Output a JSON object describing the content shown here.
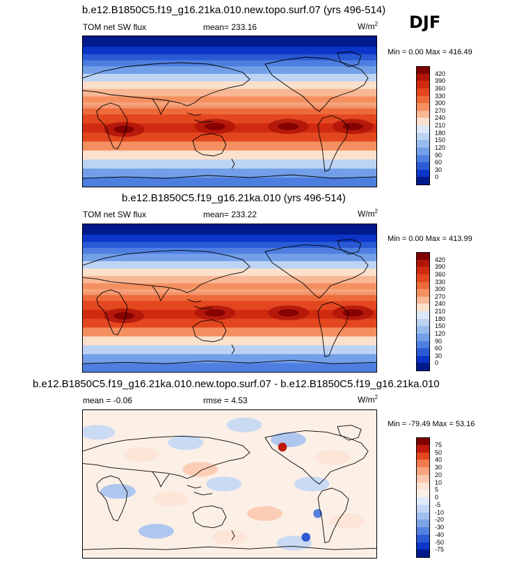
{
  "season": "DJF",
  "units_label_base": "W/m",
  "units_label_exp": "2",
  "panels": [
    {
      "id": "test",
      "title": "b.e12.B1850C5.f19_g16.21ka.010.new.topo.surf.07 (yrs 496-514)",
      "left_label": "TOM net SW flux",
      "center_label": "mean= 233.16",
      "minmax": "Min =   0.00 Max = 416.49",
      "colorbar_levels": [
        "420",
        "390",
        "360",
        "330",
        "300",
        "270",
        "240",
        "210",
        "180",
        "150",
        "120",
        "90",
        "60",
        "30",
        "0"
      ]
    },
    {
      "id": "control",
      "title": "b.e12.B1850C5.f19_g16.21ka.010 (yrs 496-514)",
      "left_label": "TOM net SW flux",
      "center_label": "mean= 233.22",
      "minmax": "Min =   0.00 Max = 413.99",
      "colorbar_levels": [
        "420",
        "390",
        "360",
        "330",
        "300",
        "270",
        "240",
        "210",
        "180",
        "150",
        "120",
        "90",
        "60",
        "30",
        "0"
      ]
    },
    {
      "id": "diff",
      "title": "b.e12.B1850C5.f19_g16.21ka.010.new.topo.surf.07 - b.e12.B1850C5.f19_g16.21ka.010",
      "left_label": "mean =   -0.06",
      "center_label": "rmse =    4.53",
      "minmax": "Min = -79.49 Max =  53.16",
      "colorbar_levels": [
        "75",
        "50",
        "40",
        "30",
        "20",
        "10",
        "5",
        "0",
        "-5",
        "-10",
        "-20",
        "-30",
        "-40",
        "-50",
        "-75"
      ]
    }
  ],
  "colors": {
    "flux_scale": [
      "#7f0000",
      "#b0150a",
      "#d02b10",
      "#e3471f",
      "#ee6a3a",
      "#f48f60",
      "#f8b795",
      "#fbe0cc",
      "#dce8f8",
      "#bcd3f4",
      "#98bbef",
      "#729fe8",
      "#4e7fe0",
      "#2a5bd5",
      "#0c35c8",
      "#001a8c"
    ],
    "diff_scale": [
      "#7f0000",
      "#c11a0c",
      "#e3471f",
      "#f27a4f",
      "#f7a37f",
      "#fbc7ac",
      "#fde3d4",
      "#fbefe6",
      "#dfeafa",
      "#c2d6f5",
      "#a1bff0",
      "#7ea2e8",
      "#5480df",
      "#2c5ad3",
      "#0c35c8",
      "#001a8c"
    ]
  }
}
